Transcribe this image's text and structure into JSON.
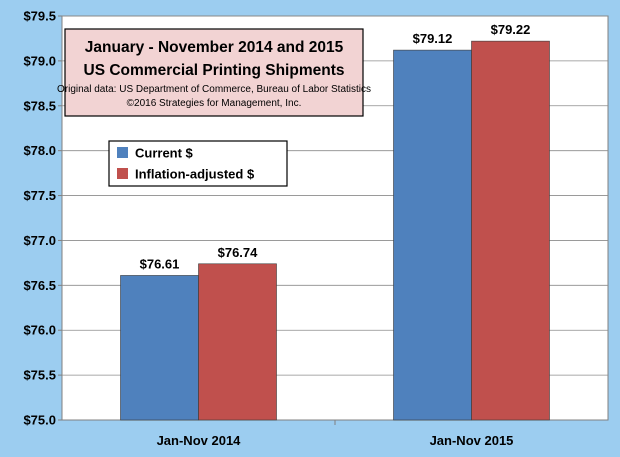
{
  "chart_data": {
    "type": "bar",
    "title": "January - November 2014 and 2015",
    "subtitle": "US Commercial Printing Shipments",
    "notes": [
      "Original data: US Department of Commerce, Bureau of Labor Statistics",
      "©2016 Strategies for Management, Inc."
    ],
    "categories": [
      "Jan-Nov 2014",
      "Jan-Nov 2015"
    ],
    "series": [
      {
        "name": "Current $",
        "values": [
          76.61,
          79.12
        ],
        "color": "#4f81bd"
      },
      {
        "name": "Inflation-adjusted $",
        "values": [
          76.74,
          79.22
        ],
        "color": "#c0504d"
      }
    ],
    "data_labels": [
      [
        "$76.61",
        "$79.12"
      ],
      [
        "$76.74",
        "$79.22"
      ]
    ],
    "ylim": [
      75.0,
      79.5
    ],
    "ytick_values": [
      75.0,
      75.5,
      76.0,
      76.5,
      77.0,
      77.5,
      78.0,
      78.5,
      79.0,
      79.5
    ],
    "ytick_labels": [
      "$75.0",
      "$75.5",
      "$76.0",
      "$76.5",
      "$77.0",
      "$77.5",
      "$78.0",
      "$78.5",
      "$79.0",
      "$79.5"
    ],
    "grid": true,
    "legend_position": "left-middle"
  }
}
